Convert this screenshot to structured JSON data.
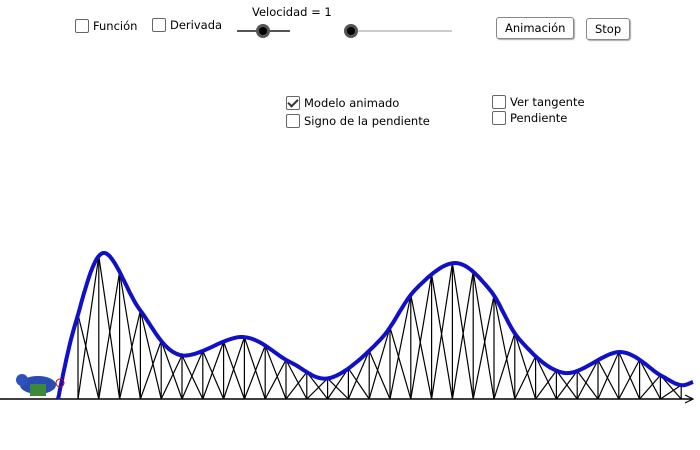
{
  "toolbar": {
    "checkboxes": [
      {
        "label": "Función",
        "checked": false
      },
      {
        "label": "Derivada",
        "checked": false
      }
    ],
    "slider_label": "Velocidad = 1",
    "buttons": [
      "Animación",
      "Stop"
    ]
  },
  "options": {
    "checkboxes": [
      {
        "label": "Modelo animado",
        "checked": true
      },
      {
        "label": "Signo de la pendiente",
        "checked": false
      },
      {
        "label": "Ver tangente",
        "checked": false
      },
      {
        "label": "Pendiente",
        "checked": false
      }
    ]
  }
}
